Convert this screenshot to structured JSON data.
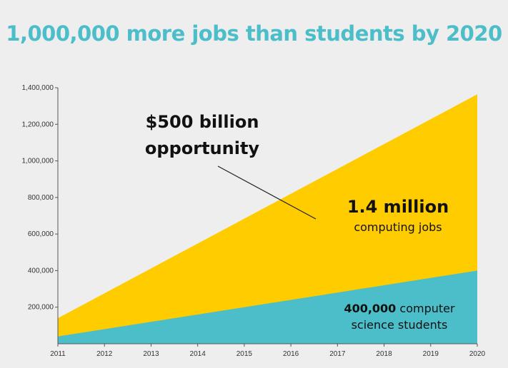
{
  "chart_data": {
    "type": "area",
    "title": "1,000,000 more jobs than students by 2020",
    "xlabel": "",
    "ylabel": "",
    "x": [
      "2011",
      "2012",
      "2013",
      "2014",
      "2015",
      "2016",
      "2017",
      "2018",
      "2019",
      "2020"
    ],
    "ylim": [
      0,
      1400000
    ],
    "y_ticks": [
      200000,
      400000,
      600000,
      800000,
      1000000,
      1200000,
      1400000
    ],
    "y_tick_labels": [
      "200,000",
      "400,000",
      "600,000",
      "800,000",
      "1,000,000",
      "1,200,000",
      "1,400,000"
    ],
    "series": [
      {
        "values": [
          140000,
          276000,
          412000,
          548000,
          684000,
          820000,
          956000,
          1092000,
          1228000,
          1364000
        ],
        "color": "#ffcc00"
      },
      {
        "values": [
          40000,
          80000,
          120000,
          160000,
          200000,
          240000,
          280000,
          320000,
          360000,
          400000
        ],
        "color": "#4bbec9"
      }
    ],
    "grid": false,
    "legend": "none",
    "annotations": {
      "opportunity_line1": "$500 billion",
      "opportunity_line2": "opportunity",
      "jobs_bold": "1.4 million",
      "jobs_text": "computing jobs",
      "students_bold": "400,000",
      "students_text1": " computer",
      "students_text2": "science students"
    }
  },
  "colors": {
    "title": "#4bbec9",
    "background": "#eeeeee",
    "jobs_area": "#ffcc00",
    "students_area": "#4bbec9"
  }
}
